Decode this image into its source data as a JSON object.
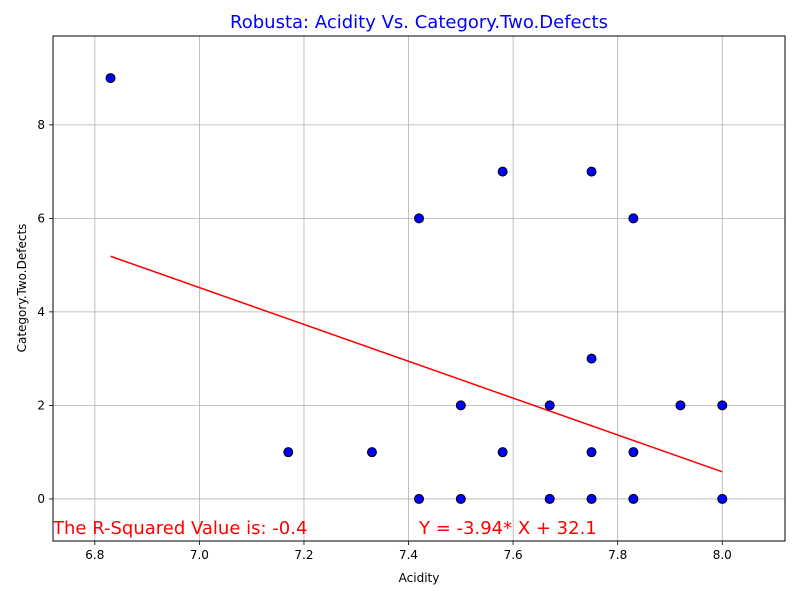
{
  "chart_data": {
    "type": "scatter",
    "title": "Robusta: Acidity Vs. Category.Two.Defects",
    "xlabel": "Acidity",
    "ylabel": "Category.Two.Defects",
    "xlim": [
      6.72,
      8.12
    ],
    "ylim": [
      -0.9,
      9.9
    ],
    "xticks": [
      6.8,
      7.0,
      7.2,
      7.4,
      7.6,
      7.8,
      8.0
    ],
    "xtick_labels": [
      "6.8",
      "7.0",
      "7.2",
      "7.4",
      "7.6",
      "7.8",
      "8.0"
    ],
    "yticks": [
      0,
      2,
      4,
      6,
      8
    ],
    "ytick_labels": [
      "0",
      "2",
      "4",
      "6",
      "8"
    ],
    "grid": true,
    "points": [
      {
        "x": 6.83,
        "y": 9
      },
      {
        "x": 7.17,
        "y": 1
      },
      {
        "x": 7.33,
        "y": 1
      },
      {
        "x": 7.42,
        "y": 6
      },
      {
        "x": 7.42,
        "y": 0
      },
      {
        "x": 7.5,
        "y": 2
      },
      {
        "x": 7.5,
        "y": 0
      },
      {
        "x": 7.58,
        "y": 7
      },
      {
        "x": 7.58,
        "y": 1
      },
      {
        "x": 7.67,
        "y": 2
      },
      {
        "x": 7.67,
        "y": 0
      },
      {
        "x": 7.75,
        "y": 7
      },
      {
        "x": 7.75,
        "y": 3
      },
      {
        "x": 7.75,
        "y": 1
      },
      {
        "x": 7.75,
        "y": 0
      },
      {
        "x": 7.83,
        "y": 6
      },
      {
        "x": 7.83,
        "y": 1
      },
      {
        "x": 7.83,
        "y": 0
      },
      {
        "x": 7.92,
        "y": 2
      },
      {
        "x": 8.0,
        "y": 2
      },
      {
        "x": 8.0,
        "y": 0
      }
    ],
    "regression": {
      "slope": -3.94,
      "intercept": 32.1,
      "x_range": [
        6.83,
        8.0
      ]
    },
    "annotations": {
      "r_squared": "The R-Squared Value is: -0.4",
      "equation": "Y = -3.94* X + 32.1"
    },
    "colors": {
      "title": "#0000ff",
      "marker_fill": "#0000ff",
      "marker_edge": "#000000",
      "line": "#ff0000",
      "annotation": "#ff0000",
      "grid": "#b0b0b0"
    }
  }
}
